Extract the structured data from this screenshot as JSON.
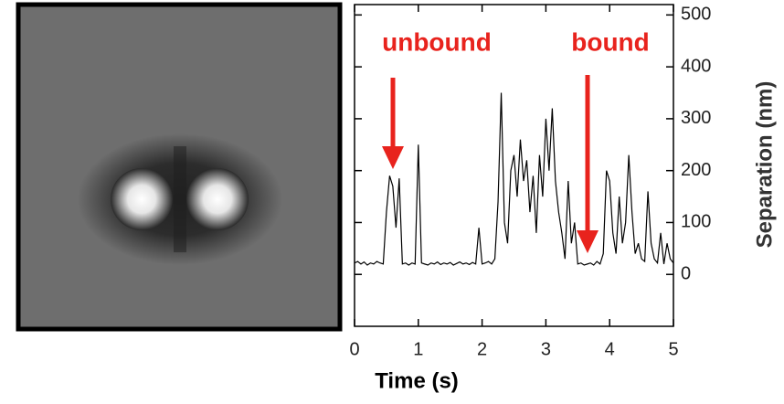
{
  "chart_data": {
    "type": "line",
    "xlabel": "Time (s)",
    "ylabel": "Separation (nm)",
    "annotations": [
      "unbound",
      "bound"
    ],
    "x": [
      0,
      0.05,
      0.1,
      0.15,
      0.2,
      0.25,
      0.3,
      0.35,
      0.4,
      0.45,
      0.5,
      0.55,
      0.6,
      0.65,
      0.7,
      0.75,
      0.8,
      0.85,
      0.9,
      0.95,
      1,
      1.05,
      1.1,
      1.15,
      1.2,
      1.25,
      1.3,
      1.35,
      1.4,
      1.45,
      1.5,
      1.55,
      1.6,
      1.65,
      1.7,
      1.75,
      1.8,
      1.85,
      1.9,
      1.95,
      2,
      2.05,
      2.1,
      2.15,
      2.2,
      2.25,
      2.3,
      2.35,
      2.4,
      2.45,
      2.5,
      2.55,
      2.6,
      2.65,
      2.7,
      2.75,
      2.8,
      2.85,
      2.9,
      2.95,
      3,
      3.05,
      3.1,
      3.15,
      3.2,
      3.25,
      3.3,
      3.35,
      3.4,
      3.45,
      3.5,
      3.55,
      3.6,
      3.65,
      3.7,
      3.75,
      3.8,
      3.85,
      3.9,
      3.95,
      4,
      4.05,
      4.1,
      4.15,
      4.2,
      4.25,
      4.3,
      4.35,
      4.4,
      4.45,
      4.5,
      4.55,
      4.6,
      4.65,
      4.7,
      4.75,
      4.8,
      4.85,
      4.9,
      4.95,
      5
    ],
    "series": [
      {
        "color": "#000000",
        "values": [
          22,
          25,
          20,
          24,
          18,
          22,
          20,
          25,
          22,
          20,
          120,
          190,
          170,
          90,
          185,
          20,
          22,
          18,
          22,
          20,
          250,
          22,
          20,
          18,
          22,
          20,
          24,
          19,
          22,
          20,
          23,
          18,
          21,
          24,
          20,
          22,
          19,
          23,
          20,
          90,
          20,
          22,
          25,
          20,
          30,
          140,
          350,
          100,
          60,
          200,
          230,
          150,
          260,
          180,
          220,
          120,
          190,
          80,
          230,
          150,
          300,
          200,
          320,
          180,
          120,
          80,
          30,
          180,
          60,
          100,
          20,
          22,
          18,
          20,
          22,
          18,
          25,
          20,
          40,
          200,
          180,
          80,
          40,
          150,
          60,
          100,
          230,
          120,
          40,
          60,
          30,
          25,
          160,
          60,
          30,
          22,
          80,
          20,
          60,
          30,
          22
        ]
      }
    ],
    "xlim": [
      0,
      5
    ],
    "xticks": [
      0,
      1,
      2,
      3,
      4,
      5
    ],
    "ylim": [
      -100,
      520
    ],
    "yticks": [
      0,
      100,
      200,
      300,
      400,
      500
    ]
  }
}
